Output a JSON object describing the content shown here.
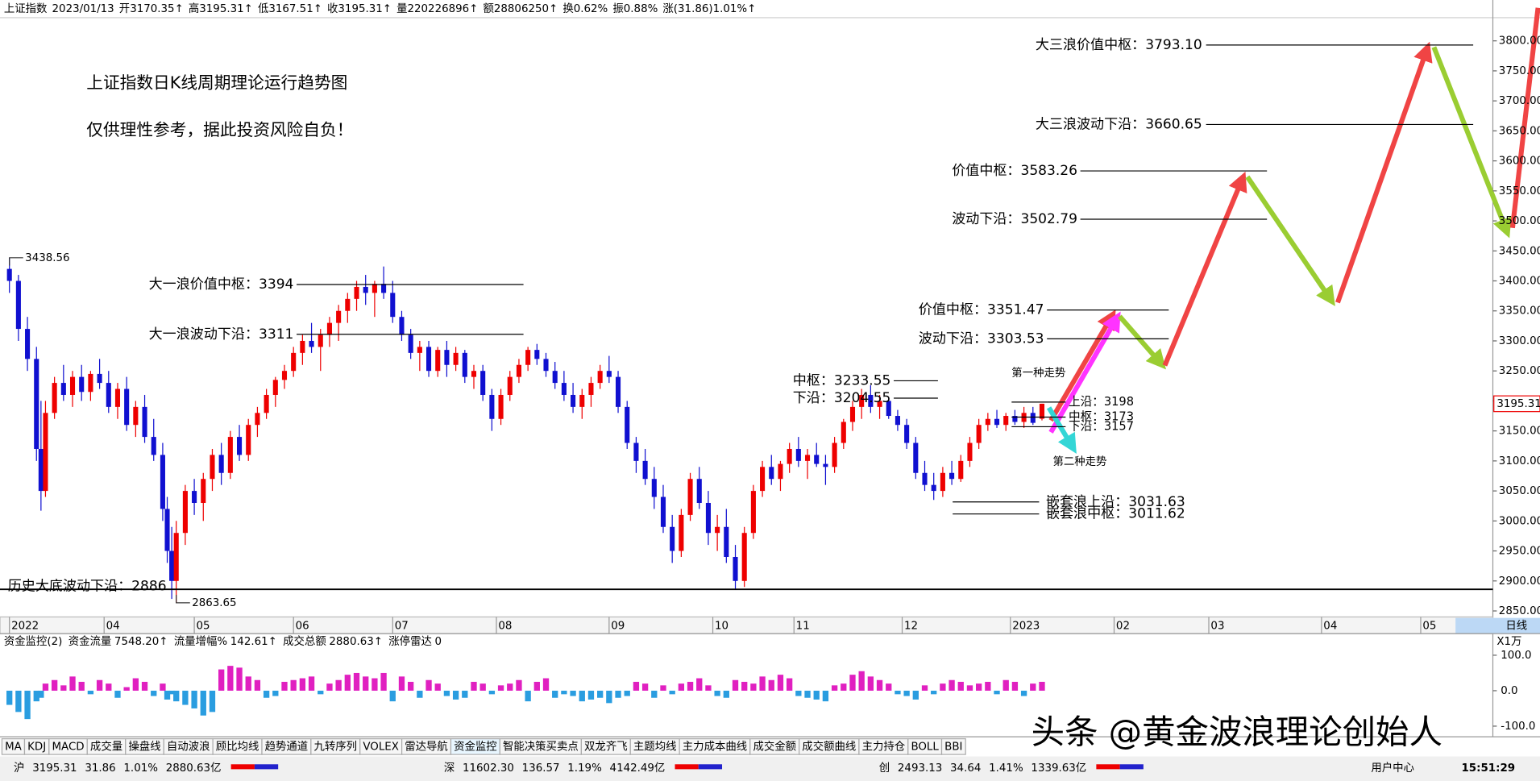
{
  "header": {
    "items": [
      "上证指数",
      "2023/01/13",
      "开3170.35↑",
      "高3195.31↑",
      "低3167.51↑",
      "收3195.31↑",
      "量220226896↑",
      "额28806250↑",
      "换0.62%",
      "振0.88%",
      "涨(31.86)1.01%↑"
    ]
  },
  "chart_data": {
    "type": "candlestick",
    "title": "上证指数日K线周期理论运行趋势图",
    "subtitle": "仅供理性参考，据此投资风险自负！",
    "xlim": [
      0,
      330
    ],
    "xticks": [
      {
        "value": 1,
        "label": "2022"
      },
      {
        "value": 22,
        "label": "04"
      },
      {
        "value": 42,
        "label": "05"
      },
      {
        "value": 64,
        "label": "06"
      },
      {
        "value": 86,
        "label": "07"
      },
      {
        "value": 109,
        "label": "08"
      },
      {
        "value": 134,
        "label": "09"
      },
      {
        "value": 157,
        "label": "10"
      },
      {
        "value": 175,
        "label": "11"
      },
      {
        "value": 199,
        "label": "12"
      },
      {
        "value": 223,
        "label": "2023"
      },
      {
        "value": 246,
        "label": "02"
      },
      {
        "value": 267,
        "label": "03"
      },
      {
        "value": 292,
        "label": "04"
      },
      {
        "value": 314,
        "label": "05"
      }
    ],
    "ylim": [
      2840,
      3855
    ],
    "yticks": [
      {
        "value": 2850,
        "label": "2850.00"
      },
      {
        "value": 2900,
        "label": "2900.00"
      },
      {
        "value": 2950,
        "label": "2950.00"
      },
      {
        "value": 3000,
        "label": "3000.00"
      },
      {
        "value": 3050,
        "label": "3050.00"
      },
      {
        "value": 3100,
        "label": "3100.00"
      },
      {
        "value": 3150,
        "label": "3150.00"
      },
      {
        "value": 3200,
        "label": "3200.00"
      },
      {
        "value": 3250,
        "label": "3250.00"
      },
      {
        "value": 3300,
        "label": "3300.00"
      },
      {
        "value": 3350,
        "label": "3350.00"
      },
      {
        "value": 3400,
        "label": "3400.00"
      },
      {
        "value": 3450,
        "label": "3450.00"
      },
      {
        "value": 3500,
        "label": "3500.00"
      },
      {
        "value": 3550,
        "label": "3550.00"
      },
      {
        "value": 3600,
        "label": "3600.00"
      },
      {
        "value": 3650,
        "label": "3650.00"
      },
      {
        "value": 3700,
        "label": "3700.00"
      },
      {
        "value": 3750,
        "label": "3750.00"
      },
      {
        "value": 3800,
        "label": "3800.00"
      }
    ],
    "up_color": "#ee0000",
    "down_color": "#1010d0",
    "candles": [
      [
        1,
        3420,
        3438.56,
        3380,
        3400
      ],
      [
        3,
        3400,
        3410,
        3300,
        3320
      ],
      [
        5,
        3320,
        3340,
        3250,
        3270
      ],
      [
        7,
        3270,
        3290,
        3100,
        3120
      ],
      [
        8,
        3120,
        3200,
        3017,
        3050
      ],
      [
        9,
        3050,
        3200,
        3040,
        3180
      ],
      [
        11,
        3180,
        3240,
        3170,
        3230
      ],
      [
        13,
        3230,
        3260,
        3200,
        3210
      ],
      [
        15,
        3210,
        3250,
        3190,
        3240
      ],
      [
        17,
        3240,
        3260,
        3200,
        3215
      ],
      [
        19,
        3215,
        3250,
        3200,
        3245
      ],
      [
        21,
        3245,
        3270,
        3220,
        3230
      ],
      [
        23,
        3230,
        3250,
        3180,
        3190
      ],
      [
        25,
        3190,
        3230,
        3170,
        3220
      ],
      [
        27,
        3220,
        3240,
        3150,
        3160
      ],
      [
        29,
        3160,
        3200,
        3140,
        3190
      ],
      [
        31,
        3190,
        3210,
        3130,
        3140
      ],
      [
        33,
        3140,
        3170,
        3100,
        3110
      ],
      [
        35,
        3110,
        3130,
        3000,
        3020
      ],
      [
        36,
        3020,
        3040,
        2930,
        2950
      ],
      [
        37,
        2950,
        2990,
        2870,
        2900
      ],
      [
        38,
        2900,
        3000,
        2863.65,
        2980
      ],
      [
        40,
        2980,
        3060,
        2960,
        3050
      ],
      [
        42,
        3050,
        3070,
        3010,
        3030
      ],
      [
        44,
        3030,
        3080,
        3000,
        3070
      ],
      [
        46,
        3070,
        3120,
        3050,
        3110
      ],
      [
        48,
        3110,
        3130,
        3060,
        3080
      ],
      [
        50,
        3080,
        3150,
        3070,
        3140
      ],
      [
        52,
        3140,
        3160,
        3100,
        3110
      ],
      [
        54,
        3110,
        3170,
        3100,
        3160
      ],
      [
        56,
        3160,
        3190,
        3140,
        3180
      ],
      [
        58,
        3180,
        3220,
        3170,
        3210
      ],
      [
        60,
        3210,
        3240,
        3190,
        3235
      ],
      [
        62,
        3235,
        3260,
        3220,
        3250
      ],
      [
        64,
        3250,
        3290,
        3240,
        3280
      ],
      [
        66,
        3280,
        3310,
        3260,
        3300
      ],
      [
        68,
        3300,
        3330,
        3280,
        3290
      ],
      [
        70,
        3290,
        3320,
        3250,
        3310
      ],
      [
        72,
        3310,
        3340,
        3290,
        3330
      ],
      [
        74,
        3330,
        3360,
        3300,
        3350
      ],
      [
        76,
        3350,
        3380,
        3330,
        3370
      ],
      [
        78,
        3370,
        3400,
        3350,
        3390
      ],
      [
        80,
        3390,
        3410,
        3360,
        3380
      ],
      [
        82,
        3380,
        3400,
        3340,
        3395
      ],
      [
        84,
        3395,
        3424,
        3370,
        3380
      ],
      [
        86,
        3380,
        3400,
        3330,
        3340
      ],
      [
        88,
        3340,
        3350,
        3300,
        3310
      ],
      [
        90,
        3310,
        3320,
        3270,
        3280
      ],
      [
        92,
        3280,
        3300,
        3250,
        3290
      ],
      [
        94,
        3290,
        3300,
        3240,
        3250
      ],
      [
        96,
        3250,
        3290,
        3240,
        3285
      ],
      [
        98,
        3285,
        3300,
        3240,
        3260
      ],
      [
        100,
        3260,
        3290,
        3250,
        3280
      ],
      [
        102,
        3280,
        3285,
        3230,
        3240
      ],
      [
        104,
        3240,
        3260,
        3220,
        3250
      ],
      [
        106,
        3250,
        3260,
        3200,
        3210
      ],
      [
        108,
        3210,
        3220,
        3150,
        3170
      ],
      [
        110,
        3170,
        3220,
        3160,
        3210
      ],
      [
        112,
        3210,
        3250,
        3200,
        3240
      ],
      [
        114,
        3240,
        3270,
        3230,
        3260
      ],
      [
        116,
        3260,
        3290,
        3250,
        3285
      ],
      [
        118,
        3285,
        3295,
        3260,
        3270
      ],
      [
        120,
        3270,
        3280,
        3240,
        3250
      ],
      [
        122,
        3250,
        3265,
        3220,
        3230
      ],
      [
        124,
        3230,
        3250,
        3200,
        3210
      ],
      [
        126,
        3210,
        3230,
        3180,
        3190
      ],
      [
        128,
        3190,
        3220,
        3170,
        3210
      ],
      [
        130,
        3210,
        3240,
        3190,
        3230
      ],
      [
        132,
        3230,
        3260,
        3220,
        3250
      ],
      [
        134,
        3250,
        3275,
        3230,
        3240
      ],
      [
        136,
        3240,
        3250,
        3180,
        3190
      ],
      [
        138,
        3190,
        3200,
        3120,
        3130
      ],
      [
        140,
        3130,
        3140,
        3080,
        3100
      ],
      [
        142,
        3100,
        3120,
        3060,
        3070
      ],
      [
        144,
        3070,
        3090,
        3020,
        3040
      ],
      [
        146,
        3040,
        3060,
        2980,
        2990
      ],
      [
        148,
        2990,
        3010,
        2930,
        2950
      ],
      [
        150,
        2950,
        3020,
        2940,
        3010
      ],
      [
        152,
        3010,
        3080,
        3000,
        3070
      ],
      [
        154,
        3070,
        3090,
        3020,
        3030
      ],
      [
        156,
        3030,
        3050,
        2960,
        2980
      ],
      [
        158,
        2980,
        3010,
        2950,
        2990
      ],
      [
        160,
        2990,
        3020,
        2930,
        2940
      ],
      [
        162,
        2940,
        2960,
        2886,
        2900
      ],
      [
        164,
        2900,
        2990,
        2890,
        2980
      ],
      [
        166,
        2980,
        3060,
        2970,
        3050
      ],
      [
        168,
        3050,
        3100,
        3040,
        3090
      ],
      [
        170,
        3090,
        3110,
        3060,
        3070
      ],
      [
        172,
        3070,
        3100,
        3050,
        3095
      ],
      [
        174,
        3095,
        3130,
        3080,
        3120
      ],
      [
        176,
        3120,
        3140,
        3090,
        3100
      ],
      [
        178,
        3100,
        3120,
        3070,
        3110
      ],
      [
        180,
        3110,
        3130,
        3090,
        3095
      ],
      [
        182,
        3095,
        3110,
        3060,
        3090
      ],
      [
        184,
        3090,
        3140,
        3080,
        3130
      ],
      [
        186,
        3130,
        3170,
        3120,
        3165
      ],
      [
        188,
        3165,
        3200,
        3150,
        3190
      ],
      [
        190,
        3190,
        3220,
        3170,
        3210
      ],
      [
        192,
        3210,
        3226,
        3180,
        3190
      ],
      [
        194,
        3190,
        3210,
        3170,
        3200
      ],
      [
        196,
        3200,
        3205,
        3170,
        3175
      ],
      [
        198,
        3175,
        3185,
        3150,
        3160
      ],
      [
        200,
        3160,
        3170,
        3120,
        3130
      ],
      [
        202,
        3130,
        3140,
        3070,
        3080
      ],
      [
        204,
        3080,
        3100,
        3050,
        3060
      ],
      [
        206,
        3060,
        3080,
        3035,
        3050
      ],
      [
        208,
        3050,
        3090,
        3040,
        3080
      ],
      [
        210,
        3080,
        3100,
        3060,
        3070
      ],
      [
        212,
        3070,
        3110,
        3065,
        3100
      ],
      [
        214,
        3100,
        3140,
        3090,
        3130
      ],
      [
        216,
        3130,
        3170,
        3120,
        3160
      ],
      [
        218,
        3160,
        3180,
        3150,
        3170
      ],
      [
        220,
        3170,
        3185,
        3155,
        3160
      ],
      [
        222,
        3160,
        3180,
        3150,
        3175
      ],
      [
        224,
        3175,
        3185,
        3160,
        3165
      ],
      [
        226,
        3165,
        3190,
        3155,
        3180
      ],
      [
        228,
        3180,
        3190,
        3160,
        3163.45
      ],
      [
        230,
        3170.35,
        3195.31,
        3167.51,
        3195.31
      ]
    ],
    "point_labels": [
      {
        "x": 1,
        "value": 3438.56
      },
      {
        "x": 38,
        "value": 2863.65
      }
    ],
    "last_price": 3195.31,
    "levels": [
      {
        "label": "大三浪价值中枢：",
        "value": 3793.1,
        "value_label": "3793.10"
      },
      {
        "label": "大三浪波动下沿：",
        "value": 3660.65
      },
      {
        "label": "价值中枢：",
        "value": 3583.26
      },
      {
        "label": "波动下沿：",
        "value": 3502.79
      },
      {
        "label": "大一浪价值中枢：",
        "value": 3394
      },
      {
        "label": "大一浪波动下沿：",
        "value": 3311
      },
      {
        "label": "价值中枢：",
        "value": 3351.47
      },
      {
        "label": "波动下沿：",
        "value": 3303.53
      },
      {
        "label": "中枢：",
        "value": 3233.55
      },
      {
        "label": "下沿：",
        "value": 3204.55
      },
      {
        "label": "上沿：",
        "value": 3198
      },
      {
        "label": "中枢：",
        "value": 3173
      },
      {
        "label": "下沿：",
        "value": 3157
      },
      {
        "label": "嵌套浪上沿：",
        "value": 3031.63
      },
      {
        "label": "嵌套浪中枢：",
        "value": 3011.62
      },
      {
        "label": "历史大底波动下沿：",
        "value": 2886
      }
    ],
    "trend_labels": [
      "第一种走势",
      "第二种走势"
    ],
    "period": "日线"
  },
  "indicator": {
    "type": "bar",
    "items": [
      "资金监控(2)",
      "资金流量",
      "7548.20↑",
      "流量增幅%",
      "142.61↑",
      "成交总额",
      "2880.63↑",
      "涨停雷达",
      "0"
    ],
    "unit": "X1万",
    "ylim": [
      -130,
      147
    ],
    "yticks": [
      {
        "value": 100,
        "label": "100.0"
      },
      {
        "value": 0,
        "label": "0.0"
      },
      {
        "value": -100,
        "label": "-100.0"
      }
    ],
    "pos_color": "#e020c0",
    "neg_color": "#2a9de0",
    "values": [
      -40,
      -60,
      -80,
      -30,
      -20,
      20,
      30,
      15,
      40,
      25,
      -10,
      30,
      20,
      -20,
      10,
      35,
      25,
      -15,
      20,
      -25,
      -10,
      -30,
      -40,
      -50,
      -70,
      -60,
      60,
      70,
      65,
      40,
      30,
      -20,
      -15,
      25,
      30,
      35,
      40,
      -10,
      20,
      30,
      45,
      50,
      40,
      35,
      50,
      -30,
      40,
      25,
      -20,
      30,
      20,
      -15,
      -25,
      -20,
      25,
      20,
      -10,
      15,
      20,
      30,
      -30,
      25,
      35,
      -20,
      -10,
      -15,
      -30,
      -25,
      -20,
      -35,
      -20,
      -15,
      25,
      20,
      -20,
      15,
      -10,
      20,
      25,
      35,
      15,
      -15,
      -20,
      30,
      25,
      20,
      40,
      30,
      45,
      35,
      -15,
      -20,
      -25,
      -30,
      15,
      20,
      45,
      55,
      40,
      30,
      20,
      -10,
      -15,
      -25,
      15,
      -10,
      20,
      30,
      25,
      15,
      20,
      25,
      -10,
      30,
      25,
      -15,
      20,
      25
    ]
  },
  "tabs": {
    "items": [
      "MA",
      "KDJ",
      "MACD",
      "成交量",
      "操盘线",
      "自动波浪",
      "顾比均线",
      "趋势通道",
      "九转序列",
      "VOLEX",
      "雷达导航",
      "资金监控",
      "智能决策买卖点",
      "双龙齐飞",
      "主题均线",
      "主力成本曲线",
      "成交金额",
      "成交额曲线",
      "主力持仓",
      "BOLL",
      "BBI"
    ],
    "active": 11
  },
  "watermark": "头条 @黄金波浪理论创始人",
  "status": {
    "markets": [
      [
        "沪",
        "3195.31",
        "31.86",
        "1.01%",
        "2880.63亿"
      ],
      [
        "深",
        "11602.30",
        "136.57",
        "1.19%",
        "4142.49亿"
      ],
      [
        "创",
        "2493.13",
        "34.64",
        "1.41%",
        "1339.63亿"
      ]
    ],
    "user": "用户中心",
    "time": "15:51:29"
  }
}
